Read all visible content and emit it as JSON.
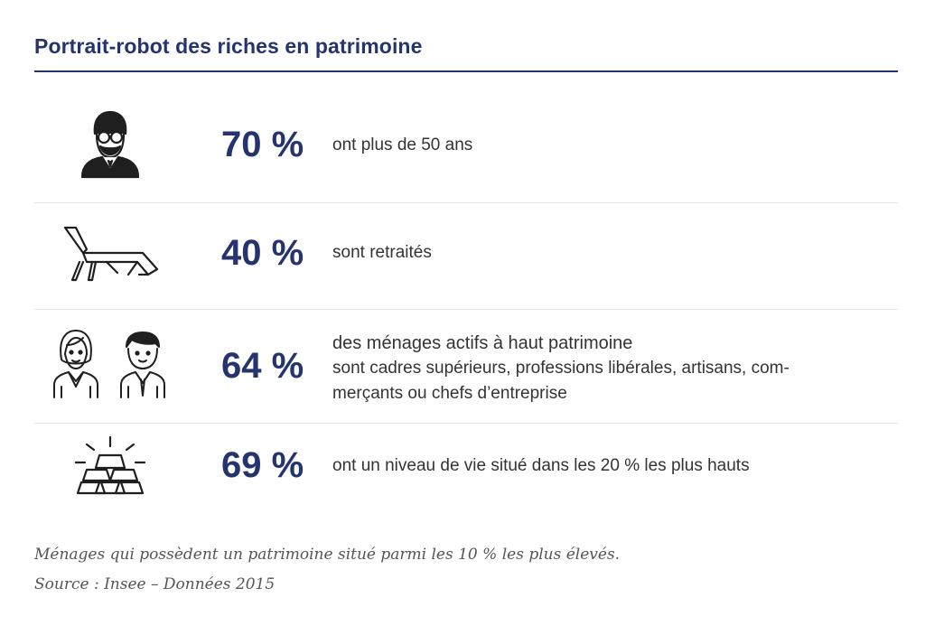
{
  "title": "Portrait-robot des riches en patrimoine",
  "colors": {
    "accent": "#25346e",
    "text": "#333333",
    "separator": "#e3e3e3"
  },
  "stats": [
    {
      "icon": "old-man-icon",
      "value": "70 %",
      "lines": [
        "ont plus de 50 ans"
      ]
    },
    {
      "icon": "sun-lounger-icon",
      "value": "40 %",
      "lines": [
        "sont retraités"
      ]
    },
    {
      "icon": "workers-icon",
      "value": "64 %",
      "lines": [
        "des ménages actifs à haut patrimoine",
        "sont cadres supérieurs, professions libérales, artisans, com-",
        "merçants ou chefs d’entreprise"
      ]
    },
    {
      "icon": "gold-bars-icon",
      "value": "69 %",
      "lines": [
        "ont un niveau de vie situé dans les 20 % les plus hauts"
      ]
    }
  ],
  "footnote": "Ménages qui possèdent un patrimoine situé parmi les 10 % les plus élevés.",
  "source": "Source : Insee – Données 2015"
}
